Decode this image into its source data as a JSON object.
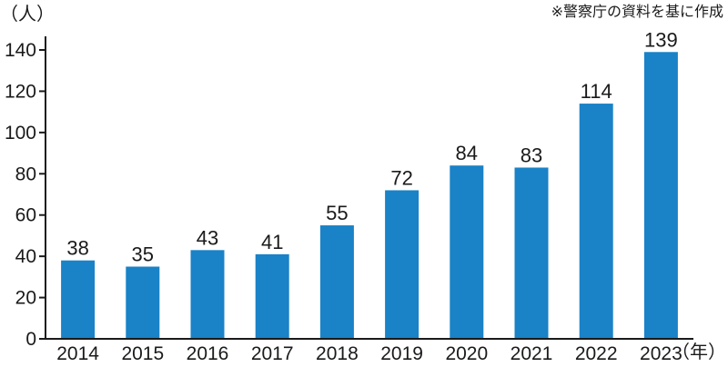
{
  "chart_data": {
    "type": "bar",
    "categories": [
      "2014",
      "2015",
      "2016",
      "2017",
      "2018",
      "2019",
      "2020",
      "2021",
      "2022",
      "2023"
    ],
    "values": [
      38,
      35,
      43,
      41,
      55,
      72,
      84,
      83,
      114,
      139
    ],
    "data_labels": [
      "38",
      "35",
      "43",
      "41",
      "55",
      "72",
      "84",
      "83",
      "114",
      "139"
    ],
    "ylim": [
      0,
      140
    ],
    "yticks": [
      0,
      20,
      40,
      60,
      80,
      100,
      120,
      140
    ],
    "y_unit_label": "（人）",
    "x_unit_label": "（年）",
    "annotation": "※警察庁の資料を基に作成",
    "grid": false,
    "bar_color": "#1a82c7"
  }
}
